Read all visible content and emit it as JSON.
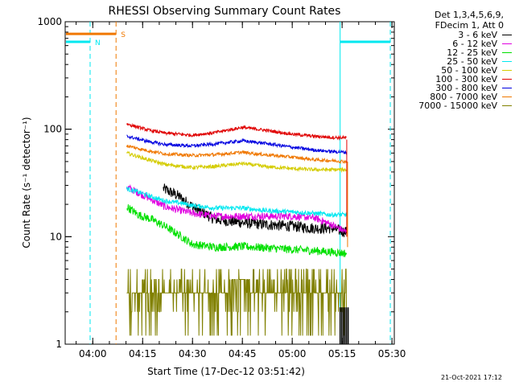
{
  "chart_data": {
    "type": "line",
    "title": "RHESSI Observing Summary Count Rates",
    "xlabel": "Start Time (17-Dec-12 03:51:42)",
    "ylabel": "Count Rate (s⁻¹ detector⁻¹)",
    "y_scale": "log",
    "ylim": [
      1,
      1000
    ],
    "xlim_minutes_after_0351": [
      0,
      99
    ],
    "x_ticks": [
      {
        "label": "04:00",
        "minutes": 8.3
      },
      {
        "label": "04:15",
        "minutes": 23.3
      },
      {
        "label": "04:30",
        "minutes": 38.3
      },
      {
        "label": "04:45",
        "minutes": 53.3
      },
      {
        "label": "05:00",
        "minutes": 68.3
      },
      {
        "label": "05:15",
        "minutes": 83.3
      },
      {
        "label": "05:30",
        "minutes": 98.3
      }
    ],
    "y_ticks": [
      {
        "label": "1",
        "value": 1
      },
      {
        "label": "10",
        "value": 10
      },
      {
        "label": "100",
        "value": 100
      },
      {
        "label": "1000",
        "value": 1000
      }
    ],
    "legend_header": [
      "Det 1,3,4,5,6,9,",
      "FDecim 1, Att 0"
    ],
    "legend_placement": "right",
    "series": [
      {
        "name": "3 - 6 keV",
        "color": "#000000",
        "start": 29.5,
        "end": 84.7,
        "values": [
          [
            29.5,
            28
          ],
          [
            34,
            24
          ],
          [
            38.3,
            19
          ],
          [
            45,
            14.5
          ],
          [
            53.3,
            13.5
          ],
          [
            60,
            13
          ],
          [
            68.3,
            12.5
          ],
          [
            75,
            12
          ],
          [
            80,
            12
          ],
          [
            84.7,
            11
          ]
        ]
      },
      {
        "name": "6 - 12 keV",
        "color": "#e000e0",
        "start": 18.5,
        "end": 84.7,
        "values": [
          [
            18.5,
            29
          ],
          [
            25,
            23
          ],
          [
            30,
            19
          ],
          [
            38.3,
            16.5
          ],
          [
            45,
            15.5
          ],
          [
            53.3,
            15.5
          ],
          [
            60,
            15.5
          ],
          [
            68.3,
            15.5
          ],
          [
            75,
            15
          ],
          [
            80,
            13
          ],
          [
            84.7,
            11
          ]
        ]
      },
      {
        "name": "12 - 25 keV",
        "color": "#00e000",
        "start": 18.5,
        "end": 84.7,
        "values": [
          [
            18.5,
            19
          ],
          [
            22,
            16
          ],
          [
            26,
            14.5
          ],
          [
            30,
            12.5
          ],
          [
            35,
            10
          ],
          [
            38.3,
            8.5
          ],
          [
            45,
            8
          ],
          [
            53.3,
            8.1
          ],
          [
            60,
            7.9
          ],
          [
            68.3,
            7.6
          ],
          [
            75,
            7.4
          ],
          [
            80,
            7.2
          ],
          [
            84.7,
            7
          ]
        ]
      },
      {
        "name": "25 - 50 keV",
        "color": "#00e8f0",
        "start": 18.5,
        "end": 84.7,
        "values": [
          [
            18.5,
            28
          ],
          [
            22,
            26
          ],
          [
            26,
            23.5
          ],
          [
            30,
            21.5
          ],
          [
            35,
            20.5
          ],
          [
            38.3,
            19.5
          ],
          [
            45,
            18.5
          ],
          [
            53.3,
            18.5
          ],
          [
            60,
            17.5
          ],
          [
            68.3,
            17
          ],
          [
            75,
            16.5
          ],
          [
            80,
            16
          ],
          [
            84.7,
            16
          ]
        ]
      },
      {
        "name": "50 - 100 keV",
        "color": "#d4cc00",
        "start": 18.5,
        "end": 84.7,
        "values": [
          [
            18.5,
            60
          ],
          [
            25,
            52
          ],
          [
            30,
            47
          ],
          [
            38.3,
            44
          ],
          [
            45,
            45
          ],
          [
            53.3,
            48
          ],
          [
            60,
            45
          ],
          [
            68.3,
            43
          ],
          [
            75,
            42
          ],
          [
            80,
            42
          ],
          [
            84.7,
            42
          ]
        ]
      },
      {
        "name": "100 - 300 keV",
        "color": "#e00000",
        "start": 18.5,
        "end": 84.7,
        "values": [
          [
            18.5,
            112
          ],
          [
            25,
            98
          ],
          [
            30,
            92
          ],
          [
            38.3,
            88
          ],
          [
            45,
            93
          ],
          [
            53.3,
            104
          ],
          [
            60,
            98
          ],
          [
            68.3,
            90
          ],
          [
            75,
            86
          ],
          [
            80,
            84
          ],
          [
            84.7,
            83
          ]
        ]
      },
      {
        "name": "300 - 800 keV",
        "color": "#0000e0",
        "start": 18.5,
        "end": 84.7,
        "values": [
          [
            18.5,
            86
          ],
          [
            25,
            77
          ],
          [
            30,
            72
          ],
          [
            38.3,
            70
          ],
          [
            45,
            73
          ],
          [
            53.3,
            78
          ],
          [
            60,
            74
          ],
          [
            68.3,
            68
          ],
          [
            75,
            64
          ],
          [
            80,
            62
          ],
          [
            84.7,
            61
          ]
        ]
      },
      {
        "name": "800 - 7000 keV",
        "color": "#f07800",
        "start": 18.5,
        "end": 84.7,
        "values": [
          [
            18.5,
            70
          ],
          [
            25,
            63
          ],
          [
            30,
            59
          ],
          [
            38.3,
            57
          ],
          [
            45,
            58
          ],
          [
            53.3,
            61
          ],
          [
            60,
            58
          ],
          [
            68.3,
            55
          ],
          [
            75,
            52
          ],
          [
            80,
            51
          ],
          [
            84.7,
            50
          ]
        ]
      },
      {
        "name": "7000 - 15000 keV",
        "color": "#808000",
        "start": 18.5,
        "end": 84.7,
        "values": [
          [
            18.5,
            3.2
          ],
          [
            25,
            2.8
          ],
          [
            30,
            2.6
          ],
          [
            38.3,
            2.8
          ],
          [
            45,
            3.4
          ],
          [
            53.3,
            3.6
          ],
          [
            60,
            3.3
          ],
          [
            68.3,
            2.9
          ],
          [
            75,
            2.8
          ],
          [
            80,
            2.7
          ],
          [
            84.7,
            2.6
          ]
        ]
      }
    ],
    "annotations": [
      {
        "text": "N",
        "color": "#00e8f0",
        "x_start": 0,
        "x_end": 7.5,
        "y": 650
      },
      {
        "text": "S",
        "color": "#f07800",
        "x_start": 0,
        "x_end": 15.3,
        "y": 770
      }
    ],
    "vertical_markers": [
      {
        "minutes": 7.5,
        "color": "#00e8f0",
        "style": "dashed"
      },
      {
        "minutes": 15.3,
        "color": "#f07800",
        "style": "dashed"
      },
      {
        "minutes": 82.7,
        "color": "#00e8f0",
        "style": "solid"
      },
      {
        "minutes": 97.8,
        "color": "#00e8f0",
        "style": "dashed"
      }
    ],
    "post_segment": {
      "color": "#00e8f0",
      "x_start": 82.7,
      "x_end": 97.8,
      "y": 650
    }
  },
  "timestamp": "21-Oct-2021 17:12"
}
